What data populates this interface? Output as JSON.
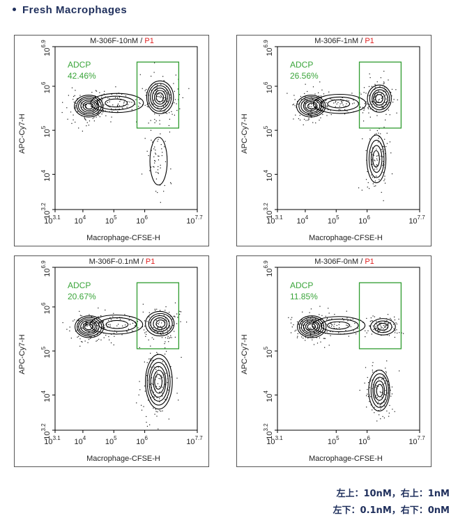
{
  "heading": "Fresh Macrophages",
  "footnote": {
    "line1": "左上：10nM，右上：1nM",
    "line2": "左下：0.1nM，右下：0nM"
  },
  "colors": {
    "gate": "#2e9b2e",
    "gate_label": "#3aa53a",
    "p1": "#e02020",
    "text": "#222222",
    "heading": "#1f2f5c"
  },
  "chart_data": [
    {
      "type": "scatter",
      "plot_style": "contour",
      "title": "M-306F-10nM",
      "title_separator": " / ",
      "population": "P1",
      "xlabel": "Macrophage-CFSE-H",
      "ylabel": "APC-Cy7-H",
      "xlim": [
        3.1,
        7.7
      ],
      "ylim": [
        3.2,
        6.9
      ],
      "x_ticks": [
        {
          "base": "10",
          "exp": "3.1",
          "v": 3.1
        },
        {
          "base": "10",
          "exp": "4",
          "v": 4
        },
        {
          "base": "10",
          "exp": "5",
          "v": 5
        },
        {
          "base": "10",
          "exp": "6",
          "v": 6
        },
        {
          "base": "10",
          "exp": "7.7",
          "v": 7.7
        }
      ],
      "y_ticks": [
        {
          "base": "10",
          "exp": "3.2",
          "v": 3.2
        },
        {
          "base": "10",
          "exp": "4",
          "v": 4
        },
        {
          "base": "10",
          "exp": "5",
          "v": 5
        },
        {
          "base": "10",
          "exp": "6",
          "v": 6
        },
        {
          "base": "10",
          "exp": "6.9",
          "v": 6.9
        }
      ],
      "gate": {
        "name": "ADCP",
        "percent": "42.46%",
        "x": [
          5.75,
          7.1
        ],
        "y": [
          5.05,
          6.55
        ]
      },
      "clusters": [
        {
          "x": 4.2,
          "y": 5.55,
          "sx": 0.3,
          "sy": 0.16,
          "levels": 6
        },
        {
          "x": 5.1,
          "y": 5.62,
          "sx": 0.55,
          "sy": 0.14,
          "levels": 3
        },
        {
          "x": 6.5,
          "y": 5.75,
          "sx": 0.28,
          "sy": 0.24,
          "levels": 6
        },
        {
          "x": 6.45,
          "y": 4.3,
          "sx": 0.18,
          "sy": 0.35,
          "levels": 1
        }
      ]
    },
    {
      "type": "scatter",
      "plot_style": "contour",
      "title": "M-306F-1nM",
      "title_separator": " / ",
      "population": "P1",
      "xlabel": "Macrophage-CFSE-H",
      "ylabel": "APC-Cy7-H",
      "xlim": [
        3.1,
        7.7
      ],
      "ylim": [
        3.2,
        6.9
      ],
      "x_ticks": [
        {
          "base": "10",
          "exp": "3.1",
          "v": 3.1
        },
        {
          "base": "10",
          "exp": "4",
          "v": 4
        },
        {
          "base": "10",
          "exp": "5",
          "v": 5
        },
        {
          "base": "10",
          "exp": "6",
          "v": 6
        },
        {
          "base": "10",
          "exp": "7.7",
          "v": 7.7
        }
      ],
      "y_ticks": [
        {
          "base": "10",
          "exp": "3.2",
          "v": 3.2
        },
        {
          "base": "10",
          "exp": "4",
          "v": 4
        },
        {
          "base": "10",
          "exp": "5",
          "v": 5
        },
        {
          "base": "10",
          "exp": "6",
          "v": 6
        },
        {
          "base": "10",
          "exp": "6.9",
          "v": 6.9
        }
      ],
      "gate": {
        "name": "ADCP",
        "percent": "26.56%",
        "x": [
          5.75,
          7.1
        ],
        "y": [
          5.05,
          6.55
        ]
      },
      "clusters": [
        {
          "x": 4.2,
          "y": 5.55,
          "sx": 0.3,
          "sy": 0.16,
          "levels": 6
        },
        {
          "x": 5.1,
          "y": 5.6,
          "sx": 0.55,
          "sy": 0.14,
          "levels": 3
        },
        {
          "x": 6.4,
          "y": 5.72,
          "sx": 0.25,
          "sy": 0.2,
          "levels": 5
        },
        {
          "x": 6.3,
          "y": 4.35,
          "sx": 0.2,
          "sy": 0.35,
          "levels": 4
        }
      ]
    },
    {
      "type": "scatter",
      "plot_style": "contour",
      "title": "M-306F-0.1nM",
      "title_separator": " / ",
      "population": "P1",
      "xlabel": "Macrophage-CFSE-H",
      "ylabel": "APC-Cy7-H",
      "xlim": [
        3.1,
        7.7
      ],
      "ylim": [
        3.2,
        6.9
      ],
      "x_ticks": [
        {
          "base": "10",
          "exp": "3.1",
          "v": 3.1
        },
        {
          "base": "10",
          "exp": "4",
          "v": 4
        },
        {
          "base": "10",
          "exp": "5",
          "v": 5
        },
        {
          "base": "10",
          "exp": "6",
          "v": 6
        },
        {
          "base": "10",
          "exp": "7.7",
          "v": 7.7
        }
      ],
      "y_ticks": [
        {
          "base": "10",
          "exp": "3.2",
          "v": 3.2
        },
        {
          "base": "10",
          "exp": "4",
          "v": 4
        },
        {
          "base": "10",
          "exp": "5",
          "v": 5
        },
        {
          "base": "10",
          "exp": "6",
          "v": 6
        },
        {
          "base": "10",
          "exp": "6.9",
          "v": 6.9
        }
      ],
      "gate": {
        "name": "ADCP",
        "percent": "20.67%",
        "x": [
          5.75,
          7.1
        ],
        "y": [
          5.05,
          6.55
        ]
      },
      "clusters": [
        {
          "x": 4.2,
          "y": 5.55,
          "sx": 0.3,
          "sy": 0.16,
          "levels": 6
        },
        {
          "x": 5.1,
          "y": 5.6,
          "sx": 0.55,
          "sy": 0.14,
          "levels": 3
        },
        {
          "x": 6.5,
          "y": 5.62,
          "sx": 0.3,
          "sy": 0.18,
          "levels": 5
        },
        {
          "x": 6.45,
          "y": 4.3,
          "sx": 0.28,
          "sy": 0.4,
          "levels": 6
        }
      ]
    },
    {
      "type": "scatter",
      "plot_style": "contour",
      "title": "M-306F-0nM",
      "title_separator": " / ",
      "population": "P1",
      "xlabel": "Macrophage-CFSE-H",
      "ylabel": "APC-Cy7-H",
      "xlim": [
        3.1,
        7.7
      ],
      "ylim": [
        3.2,
        6.9
      ],
      "x_ticks": [
        {
          "base": "10",
          "exp": "3.1",
          "v": 3.1
        },
        {
          "base": "10",
          "exp": "5",
          "v": 5
        },
        {
          "base": "10",
          "exp": "6",
          "v": 6
        },
        {
          "base": "10",
          "exp": "7.7",
          "v": 7.7
        }
      ],
      "y_ticks": [
        {
          "base": "10",
          "exp": "3.2",
          "v": 3.2
        },
        {
          "base": "10",
          "exp": "4",
          "v": 4
        },
        {
          "base": "10",
          "exp": "5",
          "v": 5
        },
        {
          "base": "10",
          "exp": "6.9",
          "v": 6.9
        }
      ],
      "gate": {
        "name": "ADCP",
        "percent": "11.85%",
        "x": [
          5.75,
          7.1
        ],
        "y": [
          5.05,
          6.55
        ]
      },
      "clusters": [
        {
          "x": 4.2,
          "y": 5.55,
          "sx": 0.3,
          "sy": 0.16,
          "levels": 6
        },
        {
          "x": 5.1,
          "y": 5.58,
          "sx": 0.55,
          "sy": 0.13,
          "levels": 3
        },
        {
          "x": 6.5,
          "y": 5.55,
          "sx": 0.26,
          "sy": 0.12,
          "levels": 3
        },
        {
          "x": 6.4,
          "y": 4.1,
          "sx": 0.22,
          "sy": 0.3,
          "levels": 5
        }
      ]
    }
  ]
}
